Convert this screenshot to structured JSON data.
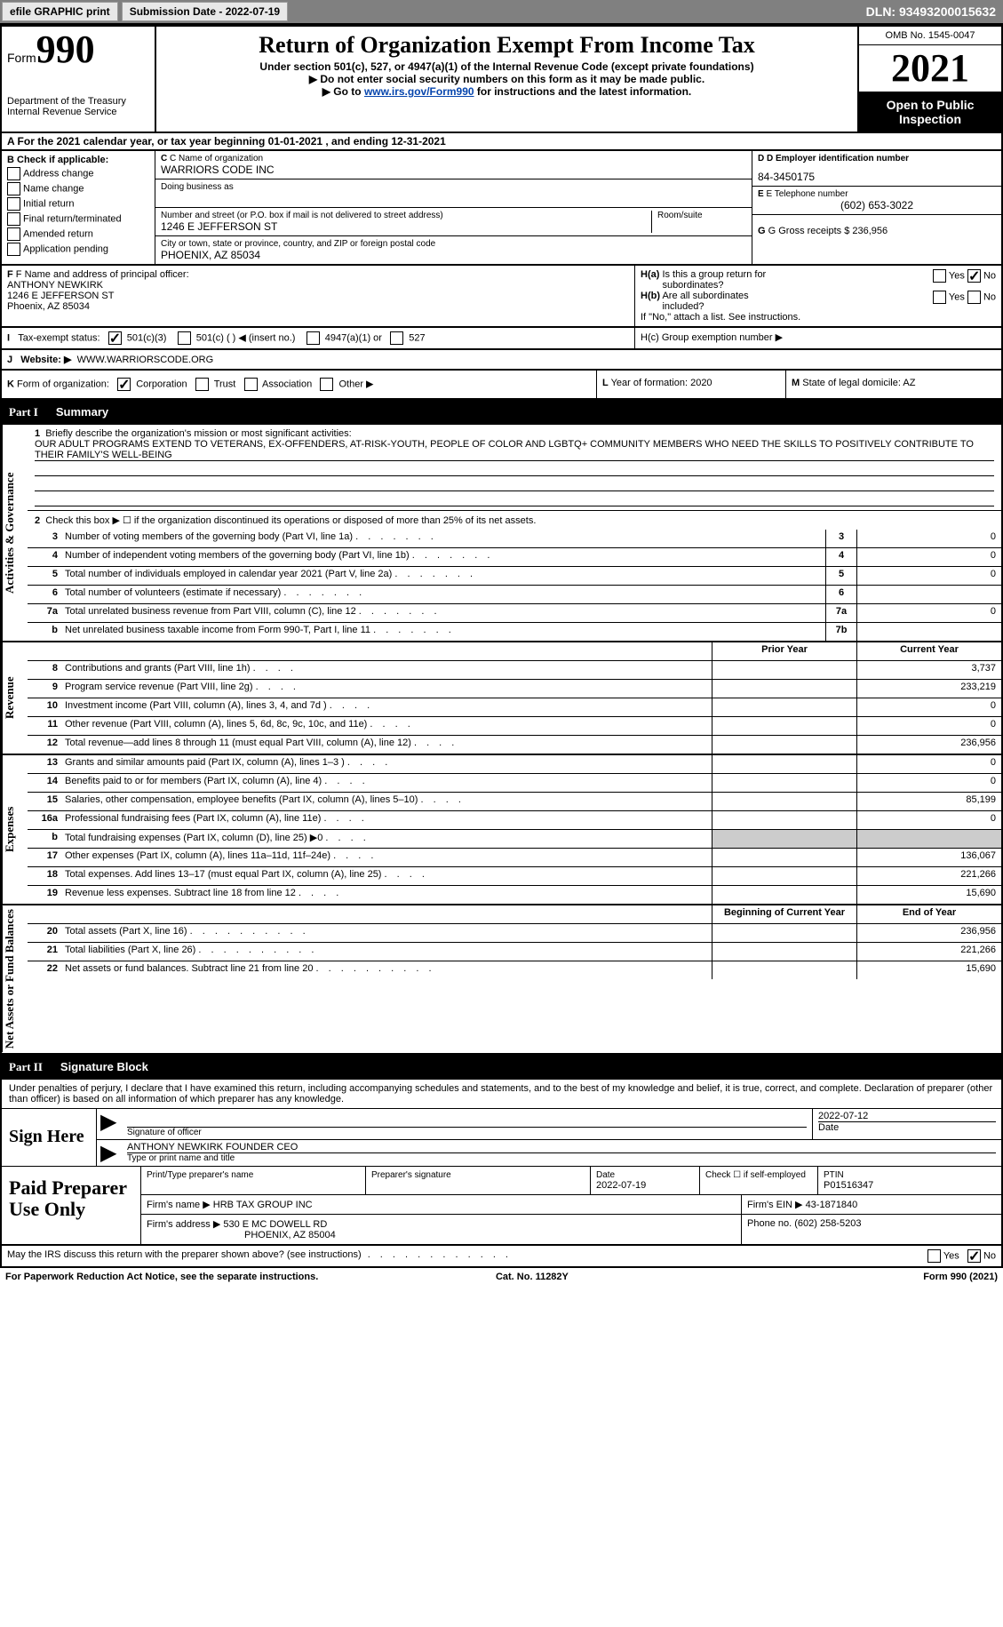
{
  "topbar": {
    "efile": "efile GRAPHIC print",
    "submission": "Submission Date - 2022-07-19",
    "dln": "DLN: 93493200015632"
  },
  "header": {
    "form_label": "Form",
    "form_number": "990",
    "dept": "Department of the Treasury\nInternal Revenue",
    "title": "Return of Organization Exempt From Income Tax",
    "subtitle": "Under section 501(c), 527, or 4947(a)(1) of the Internal Revenue Code (except private foundations)",
    "note1": "▶ Do not enter social security numbers on this form as it may be made public.",
    "note2_pre": "▶ Go to ",
    "note2_link": "www.irs.gov/Form990",
    "note2_post": " for instructions and the latest information.",
    "omb": "OMB No. 1545-0047",
    "year": "2021",
    "inspect": "Open to Public Inspection"
  },
  "row_a": "A For the 2021 calendar year, or tax year beginning 01-01-2021    , and ending 12-31-2021",
  "section_b": {
    "header": "B Check if applicable:",
    "checks": [
      "Address change",
      "Name change",
      "Initial return",
      "Final return/terminated",
      "Amended return",
      "Application pending"
    ],
    "c_label": "C Name of organization",
    "c_value": "WARRIORS CODE INC",
    "dba_label": "Doing business as",
    "addr_label": "Number and street (or P.O. box if mail is not delivered to street address)",
    "room_label": "Room/suite",
    "addr_value": "1246 E JEFFERSON ST",
    "city_label": "City or town, state or province, country, and ZIP or foreign postal code",
    "city_value": "PHOENIX, AZ  85034",
    "d_label": "D Employer identification number",
    "d_value": "84-3450175",
    "e_label": "E Telephone number",
    "e_value": "(602) 653-3022",
    "g_label": "G Gross receipts $",
    "g_value": "236,956"
  },
  "section_f": {
    "f_label": "F Name and address of principal officer:",
    "f_name": "ANTHONY NEWKIRK",
    "f_addr1": "1246 E JEFFERSON ST",
    "f_addr2": "Phoenix, AZ  85034",
    "ha_label": "H(a)  Is this a group return for subordinates?",
    "ha_no_checked": true,
    "hb_label": "H(b)  Are all subordinates included?",
    "hb_note": "If \"No,\" attach a list. See instructions.",
    "hc_label": "H(c)  Group exemption number ▶"
  },
  "tax_exempt": {
    "i_label": "I   Tax-exempt status:",
    "opt1": "501(c)(3)",
    "opt2": "501(c) (  ) ◀ (insert no.)",
    "opt3": "4947(a)(1) or",
    "opt4": "527"
  },
  "website": {
    "j_label": "J   Website: ▶",
    "j_value": "WWW.WARRIORSCODE.ORG"
  },
  "form_org": {
    "k_label": "K Form of organization:",
    "opts": [
      "Corporation",
      "Trust",
      "Association",
      "Other ▶"
    ],
    "l_label": "L Year of formation:",
    "l_value": "2020",
    "m_label": "M State of legal domicile:",
    "m_value": "AZ"
  },
  "part1": {
    "title": "Part I",
    "subtitle": "Summary",
    "line1_label": "Briefly describe the organization's mission or most significant activities:",
    "line1_text": "OUR ADULT PROGRAMS EXTEND TO VETERANS, EX-OFFENDERS, AT-RISK-YOUTH, PEOPLE OF COLOR AND LGBTQ+ COMMUNITY MEMBERS WHO NEED THE SKILLS TO POSITIVELY CONTRIBUTE TO THEIR FAMILY'S WELL-BEING",
    "line2": "Check this box ▶ ☐  if the organization discontinued its operations or disposed of more than 25% of its net assets.",
    "rows_top": [
      {
        "num": "3",
        "desc": "Number of voting members of the governing body (Part VI, line 1a)",
        "box": "3",
        "val": "0"
      },
      {
        "num": "4",
        "desc": "Number of independent voting members of the governing body (Part VI, line 1b)",
        "box": "4",
        "val": "0"
      },
      {
        "num": "5",
        "desc": "Total number of individuals employed in calendar year 2021 (Part V, line 2a)",
        "box": "5",
        "val": "0"
      },
      {
        "num": "6",
        "desc": "Total number of volunteers (estimate if necessary)",
        "box": "6",
        "val": ""
      },
      {
        "num": "7a",
        "desc": "Total unrelated business revenue from Part VIII, column (C), line 12",
        "box": "7a",
        "val": "0"
      },
      {
        "num": "b",
        "desc": "Net unrelated business taxable income from Form 990-T, Part I, line 11",
        "box": "7b",
        "val": ""
      }
    ],
    "col_prior": "Prior Year",
    "col_current": "Current Year",
    "revenue_rows": [
      {
        "num": "8",
        "desc": "Contributions and grants (Part VIII, line 1h)",
        "prior": "",
        "current": "3,737"
      },
      {
        "num": "9",
        "desc": "Program service revenue (Part VIII, line 2g)",
        "prior": "",
        "current": "233,219"
      },
      {
        "num": "10",
        "desc": "Investment income (Part VIII, column (A), lines 3, 4, and 7d )",
        "prior": "",
        "current": "0"
      },
      {
        "num": "11",
        "desc": "Other revenue (Part VIII, column (A), lines 5, 6d, 8c, 9c, 10c, and 11e)",
        "prior": "",
        "current": "0"
      },
      {
        "num": "12",
        "desc": "Total revenue—add lines 8 through 11 (must equal Part VIII, column (A), line 12)",
        "prior": "",
        "current": "236,956"
      }
    ],
    "expense_rows": [
      {
        "num": "13",
        "desc": "Grants and similar amounts paid (Part IX, column (A), lines 1–3 )",
        "prior": "",
        "current": "0"
      },
      {
        "num": "14",
        "desc": "Benefits paid to or for members (Part IX, column (A), line 4)",
        "prior": "",
        "current": "0"
      },
      {
        "num": "15",
        "desc": "Salaries, other compensation, employee benefits (Part IX, column (A), lines 5–10)",
        "prior": "",
        "current": "85,199"
      },
      {
        "num": "16a",
        "desc": "Professional fundraising fees (Part IX, column (A), line 11e)",
        "prior": "",
        "current": "0"
      },
      {
        "num": "b",
        "desc": "Total fundraising expenses (Part IX, column (D), line 25) ▶0",
        "prior": "grey",
        "current": "grey"
      },
      {
        "num": "17",
        "desc": "Other expenses (Part IX, column (A), lines 11a–11d, 11f–24e)",
        "prior": "",
        "current": "136,067"
      },
      {
        "num": "18",
        "desc": "Total expenses. Add lines 13–17 (must equal Part IX, column (A), line 25)",
        "prior": "",
        "current": "221,266"
      },
      {
        "num": "19",
        "desc": "Revenue less expenses. Subtract line 18 from line 12",
        "prior": "",
        "current": "15,690"
      }
    ],
    "col_begin": "Beginning of Current Year",
    "col_end": "End of Year",
    "netasset_rows": [
      {
        "num": "20",
        "desc": "Total assets (Part X, line 16)",
        "prior": "",
        "current": "236,956"
      },
      {
        "num": "21",
        "desc": "Total liabilities (Part X, line 26)",
        "prior": "",
        "current": "221,266"
      },
      {
        "num": "22",
        "desc": "Net assets or fund balances. Subtract line 21 from line 20",
        "prior": "",
        "current": "15,690"
      }
    ]
  },
  "part2": {
    "title": "Part II",
    "subtitle": "Signature Block",
    "declaration": "Under penalties of perjury, I declare that I have examined this return, including accompanying schedules and statements, and to the best of my knowledge and belief, it is true, correct, and complete. Declaration of preparer (other than officer) is based on all information of which preparer has any knowledge.",
    "sign_here": "Sign Here",
    "sig_officer_label": "Signature of officer",
    "sig_date": "2022-07-12",
    "date_label": "Date",
    "officer_name": "ANTHONY NEWKIRK  FOUNDER CEO",
    "officer_label": "Type or print name and title",
    "paid_label": "Paid Preparer Use Only",
    "prep_name_label": "Print/Type preparer's name",
    "prep_sig_label": "Preparer's signature",
    "prep_date_label": "Date",
    "prep_date": "2022-07-19",
    "check_if_label": "Check ☐ if self-employed",
    "ptin_label": "PTIN",
    "ptin": "P01516347",
    "firm_name_label": "Firm's name     ▶",
    "firm_name": "HRB TAX GROUP INC",
    "firm_ein_label": "Firm's EIN ▶",
    "firm_ein": "43-1871840",
    "firm_addr_label": "Firm's address ▶",
    "firm_addr": "530 E MC DOWELL RD",
    "firm_city": "PHOENIX, AZ  85004",
    "phone_label": "Phone no.",
    "phone": "(602) 258-5203",
    "may_irs": "May the IRS discuss this return with the preparer shown above? (see instructions)",
    "yes": "Yes",
    "no": "No"
  },
  "footer": {
    "paperwork": "For Paperwork Reduction Act Notice, see the separate instructions.",
    "cat": "Cat. No. 11282Y",
    "form": "Form 990 (2021)"
  },
  "side_labels": {
    "gov": "Activities & Governance",
    "rev": "Revenue",
    "exp": "Expenses",
    "net": "Net Assets or Fund Balances"
  }
}
